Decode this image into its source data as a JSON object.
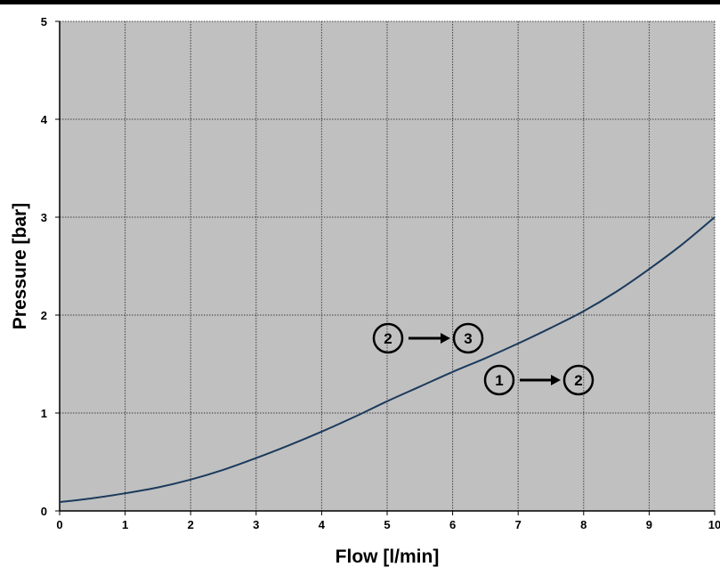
{
  "chart_data": {
    "type": "line",
    "title": "",
    "xlabel": "Flow [l/min]",
    "ylabel": "Pressure [bar]",
    "xlim": [
      0,
      10
    ],
    "ylim": [
      0,
      5
    ],
    "x_ticks": [
      0,
      1,
      2,
      3,
      4,
      5,
      6,
      7,
      8,
      9,
      10
    ],
    "y_ticks": [
      0,
      1,
      2,
      3,
      4,
      5
    ],
    "grid": true,
    "legend": "none",
    "colors": {
      "plot_background": "#c0c0c0",
      "line": "#1b3a5c",
      "grid": "#404040"
    },
    "series": [
      {
        "x": [
          0,
          0.5,
          1,
          1.5,
          2,
          2.5,
          3,
          3.5,
          4,
          4.5,
          5,
          5.5,
          6,
          6.5,
          7,
          7.5,
          8,
          8.5,
          9,
          9.5,
          10
        ],
        "values": [
          0.09,
          0.13,
          0.18,
          0.24,
          0.32,
          0.42,
          0.54,
          0.67,
          0.81,
          0.96,
          1.12,
          1.27,
          1.42,
          1.56,
          1.71,
          1.87,
          2.04,
          2.24,
          2.47,
          2.72,
          3.0
        ]
      }
    ],
    "annotations": [
      {
        "from": "2",
        "to": "3"
      },
      {
        "from": "1",
        "to": "2"
      }
    ]
  }
}
